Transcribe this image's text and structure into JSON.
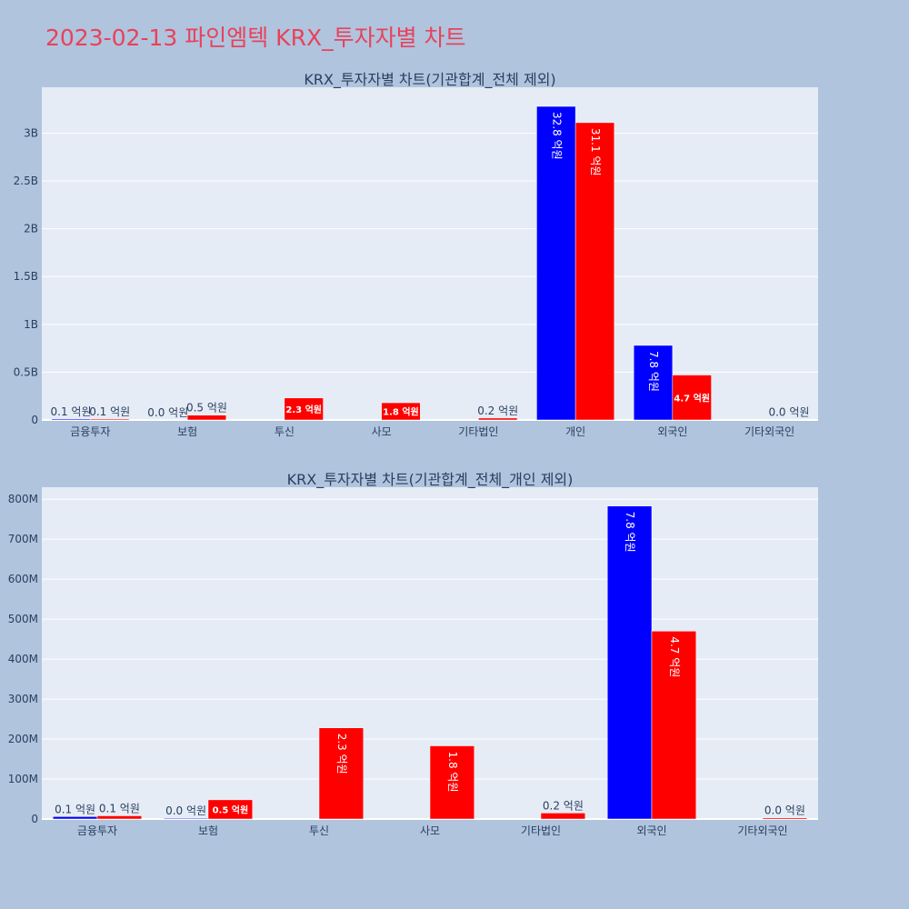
{
  "page": {
    "title": "2023-02-13 파인엠텍 KRX_투자자별 차트"
  },
  "colors": {
    "background": "#b0c4de",
    "plot_bg": "#e5ecf6",
    "buy": "#0000ff",
    "sell": "#ff0000",
    "title": "#e8425a"
  },
  "chart_data": [
    {
      "type": "bar",
      "title": "KRX_투자자별 차트(기관합계_전체 제외)",
      "categories": [
        "금융투자",
        "보험",
        "투신",
        "사모",
        "기타법인",
        "개인",
        "외국인",
        "기타외국인"
      ],
      "ylim": [
        0,
        3480000000
      ],
      "yticks": [
        0,
        500000000,
        1000000000,
        1500000000,
        2000000000,
        2500000000,
        3000000000
      ],
      "yticklabels": [
        "0",
        "0.5B",
        "1B",
        "1.5B",
        "2B",
        "2.5B",
        "3B"
      ],
      "grid": true,
      "series": [
        {
          "color": "#0000ff",
          "values": [
            10000000,
            1000000,
            null,
            null,
            null,
            3280000000,
            780000000,
            null
          ],
          "labels": [
            "0.1 억원",
            "0.0 억원",
            "",
            "",
            "",
            "32.8 억원",
            "7.8 억원",
            ""
          ]
        },
        {
          "color": "#ff0000",
          "values": [
            10000000,
            50000000,
            230000000,
            180000000,
            20000000,
            3110000000,
            470000000,
            3000000
          ],
          "labels": [
            "0.1 억원",
            "0.5 억원",
            "2.3 억원",
            "1.8 억원",
            "0.2 억원",
            "31.1 억원",
            "4.7 억원",
            "0.0 억원"
          ]
        }
      ]
    },
    {
      "type": "bar",
      "title": "KRX_투자자별 차트(기관합계_전체_개인 제외)",
      "categories": [
        "금융투자",
        "보험",
        "투신",
        "사모",
        "기타법인",
        "외국인",
        "기타외국인"
      ],
      "ylim": [
        0,
        830000000
      ],
      "yticks": [
        0,
        100000000,
        200000000,
        300000000,
        400000000,
        500000000,
        600000000,
        700000000,
        800000000
      ],
      "yticklabels": [
        "0",
        "100M",
        "200M",
        "300M",
        "400M",
        "500M",
        "600M",
        "700M",
        "800M"
      ],
      "grid": true,
      "series": [
        {
          "color": "#0000ff",
          "values": [
            6000000,
            2000000,
            null,
            null,
            null,
            783000000,
            null
          ],
          "labels": [
            "0.1 억원",
            "0.0 억원",
            "",
            "",
            "",
            "7.8 억원",
            ""
          ]
        },
        {
          "color": "#ff0000",
          "values": [
            8000000,
            48000000,
            228000000,
            183000000,
            15000000,
            470000000,
            3000000
          ],
          "labels": [
            "0.1 억원",
            "0.5 억원",
            "2.3 억원",
            "1.8 억원",
            "0.2 억원",
            "4.7 억원",
            "0.0 억원"
          ]
        }
      ]
    }
  ]
}
